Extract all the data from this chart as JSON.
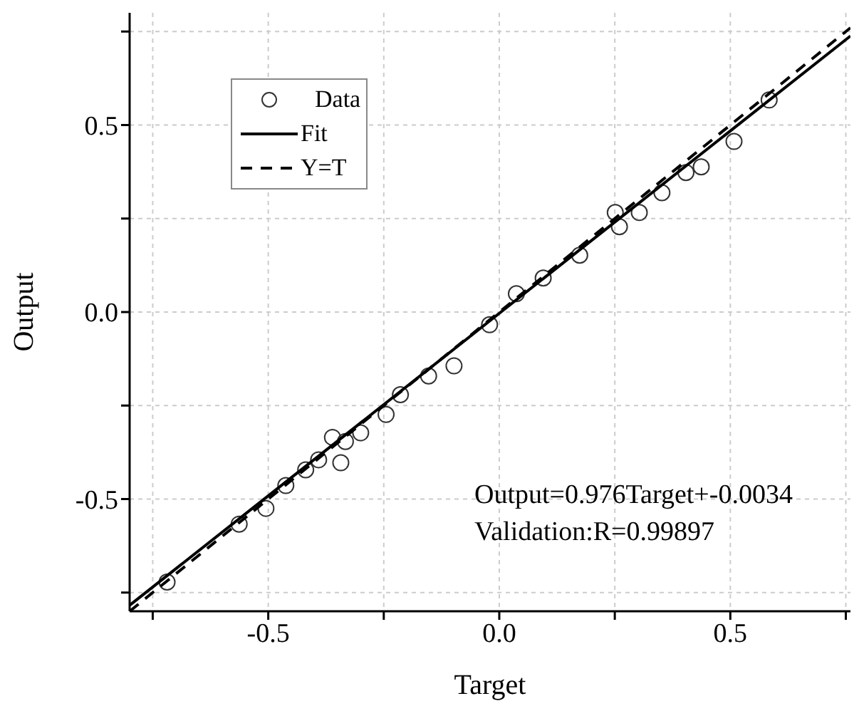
{
  "chart_data": {
    "type": "scatter",
    "xlabel": "Target",
    "ylabel": "Output",
    "xlim": [
      -0.8,
      0.76
    ],
    "ylim": [
      -0.8,
      0.8
    ],
    "xticks": [
      {
        "value": -0.75,
        "label": null
      },
      -0.5,
      {
        "value": -0.25,
        "label": null
      },
      {
        "value": 0,
        "label": "0.0"
      },
      {
        "value": 0.25,
        "label": null
      },
      0.5,
      {
        "value": 0.75,
        "label": null
      }
    ],
    "yticks": [
      {
        "value": -0.75,
        "label": null
      },
      -0.5,
      {
        "value": -0.25,
        "label": null
      },
      {
        "value": 0,
        "label": "0.0"
      },
      {
        "value": 0.25,
        "label": null
      },
      0.5,
      {
        "value": 0.75,
        "label": null
      }
    ],
    "grid": true,
    "legend": "top left",
    "annotations": [
      "Output=0.976Target+-0.0034",
      "Validation:R=0.99897"
    ],
    "series": [
      {
        "name": "Data",
        "color": "#333333",
        "marker": "circle",
        "x": [
          -0.719,
          -0.563,
          -0.505,
          -0.462,
          -0.419,
          -0.391,
          -0.361,
          -0.343,
          -0.333,
          -0.3,
          -0.245,
          -0.214,
          -0.153,
          -0.098,
          -0.021,
          0.037,
          0.095,
          0.174,
          0.251,
          0.26,
          0.303,
          0.352,
          0.404,
          0.437,
          0.508,
          0.584
        ],
        "values": [
          -0.722,
          -0.567,
          -0.525,
          -0.464,
          -0.422,
          -0.395,
          -0.335,
          -0.403,
          -0.346,
          -0.323,
          -0.274,
          -0.221,
          -0.171,
          -0.144,
          -0.034,
          0.049,
          0.091,
          0.152,
          0.266,
          0.228,
          0.266,
          0.319,
          0.373,
          0.388,
          0.456,
          0.567
        ]
      },
      {
        "name": "Fit",
        "type": "line",
        "color": "#000000",
        "line_style": "solid",
        "marker": "none",
        "x": [
          -0.8,
          0.76
        ],
        "values": [
          -0.784,
          0.738
        ]
      },
      {
        "name": "Y=T",
        "type": "line",
        "color": "#000000",
        "line_style": "dashed",
        "marker": "none",
        "x": [
          -0.8,
          0.76
        ],
        "values": [
          -0.8,
          0.76
        ]
      }
    ]
  }
}
